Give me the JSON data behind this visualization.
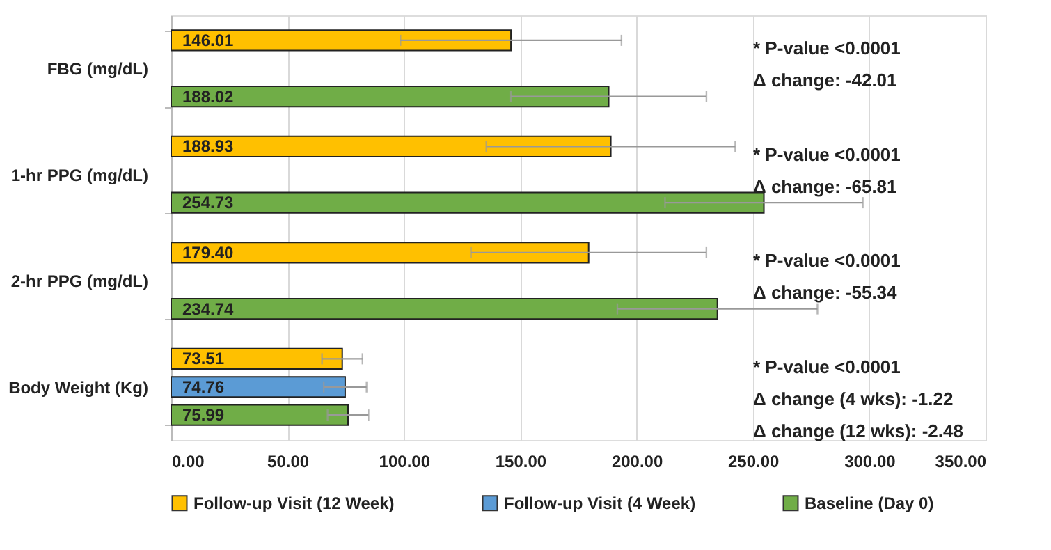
{
  "chart_data": {
    "type": "bar",
    "orientation": "horizontal",
    "categories": [
      "FBG (mg/dL)",
      "1-hr PPG (mg/dL)",
      "2-hr PPG (mg/dL)",
      "Body Weight (Kg)"
    ],
    "series": [
      {
        "name": "Follow-up Visit (12 Week)",
        "color": "#ffc000",
        "values": [
          146.01,
          188.93,
          179.4,
          73.51
        ],
        "value_labels": [
          "146.01",
          "188.93",
          "179.40",
          "73.51"
        ],
        "errors": [
          47.5,
          53.5,
          50.6,
          8.7
        ]
      },
      {
        "name": "Follow-up Visit (4 Week)",
        "color": "#5b9bd5",
        "values": [
          null,
          null,
          null,
          74.76
        ],
        "value_labels": [
          null,
          null,
          null,
          "74.76"
        ],
        "errors": [
          null,
          null,
          null,
          9.2
        ]
      },
      {
        "name": "Baseline (Day 0)",
        "color": "#70ad47",
        "values": [
          188.02,
          254.73,
          234.74,
          75.99
        ],
        "value_labels": [
          "188.02",
          "254.73",
          "234.74",
          "75.99"
        ],
        "errors": [
          42.0,
          42.5,
          43.0,
          8.8
        ]
      }
    ],
    "xlim": [
      0,
      350
    ],
    "xticks": [
      {
        "value": 0,
        "label": "0.00"
      },
      {
        "value": 50,
        "label": "50.00"
      },
      {
        "value": 100,
        "label": "100.00"
      },
      {
        "value": 150,
        "label": "150.00"
      },
      {
        "value": 200,
        "label": "200.00"
      },
      {
        "value": 250,
        "label": "250.00"
      },
      {
        "value": 300,
        "label": "300.00"
      },
      {
        "value": 350,
        "label": "350.00"
      }
    ],
    "annotations": [
      "* P-value <0.0001\nΔ change: -42.01",
      "* P-value <0.0001\nΔ change: -65.81",
      "* P-value <0.0001\nΔ change: -55.34",
      "* P-value <0.0001\nΔ change (4 wks): -1.22\nΔ change (12 wks): -2.48"
    ],
    "grid": "x",
    "legend": "bottom"
  }
}
